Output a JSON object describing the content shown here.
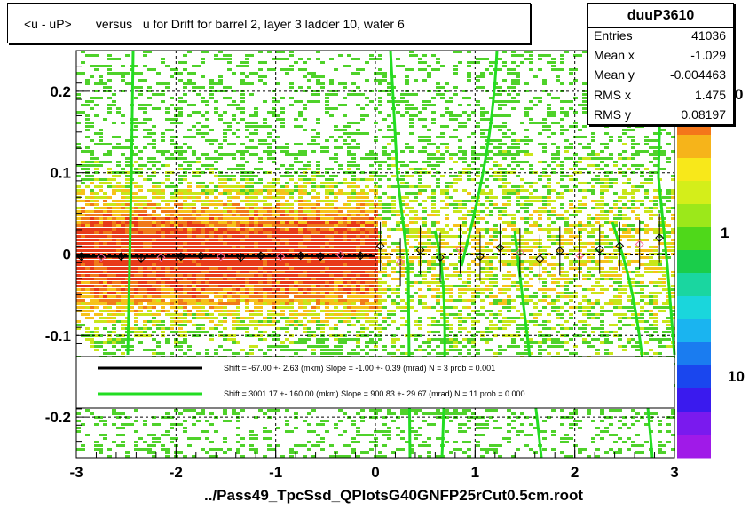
{
  "title": "<u - uP>       versus   u for Drift for barrel 2, layer 3 ladder 10, wafer 6",
  "footer": "../Pass49_TpcSsd_QPlotsG40GNFP25rCut0.5cm.root",
  "stats": {
    "name": "duuP3610",
    "rows": [
      {
        "key": "Entries",
        "value": "41036"
      },
      {
        "key": "Mean x",
        "value": "-1.029"
      },
      {
        "key": "Mean y",
        "value": "-0.004463"
      },
      {
        "key": "RMS x",
        "value": "1.475"
      },
      {
        "key": "RMS y",
        "value": "0.08197"
      }
    ]
  },
  "colors": {
    "black_fit": "#000000",
    "green_fit": "#22dd22",
    "grid": "#000000",
    "profile_marker": "#000000",
    "profile_marker_alt": "#ff6699"
  },
  "chart_data": {
    "type": "heatmap",
    "xlim": [
      -3,
      3
    ],
    "ylim": [
      -0.25,
      0.25
    ],
    "x_ticks": [
      -3,
      -2,
      -1,
      0,
      1,
      2,
      3
    ],
    "x_tick_labels": [
      "-3",
      "-2",
      "-1",
      "0",
      "1",
      "2",
      "3"
    ],
    "y_ticks": [
      -0.2,
      -0.1,
      0,
      0.1,
      0.2
    ],
    "y_tick_labels": [
      "-0.2",
      "-0.1",
      "0",
      "0.1",
      "0.2"
    ],
    "grid": true,
    "colorbar": {
      "scale": "log",
      "tick_labels": [
        "10",
        "1",
        "0"
      ]
    },
    "legend": {
      "placement": "lower-center",
      "entries": [
        {
          "color": "#000000",
          "text": "Shift =   -67.00 +- 2.63 (mkm) Slope =    -1.00 +- 0.39 (mrad)  N = 3 prob = 0.001"
        },
        {
          "color": "#22dd22",
          "text": "Shift =  3001.17 +- 160.00 (mkm) Slope =   900.83 +- 29.67 (mrad)  N = 11 prob = 0.000"
        }
      ]
    },
    "fits": [
      {
        "name": "black",
        "shift_mkm": -67.0,
        "slope_mrad": -1.0
      },
      {
        "name": "green",
        "shift_mkm": 3001.17,
        "slope_mrad": 900.83
      }
    ],
    "profile_points": {
      "x": [
        -2.95,
        -2.75,
        -2.55,
        -2.35,
        -2.15,
        -1.95,
        -1.75,
        -1.55,
        -1.35,
        -1.15,
        -0.95,
        -0.75,
        -0.55,
        -0.35,
        -0.15,
        0.05,
        0.25,
        0.45,
        0.65,
        0.85,
        1.05,
        1.25,
        1.45,
        1.65,
        1.85,
        2.05,
        2.25,
        2.45,
        2.65,
        2.85
      ],
      "y": [
        -0.003,
        -0.004,
        -0.003,
        -0.005,
        -0.004,
        -0.003,
        -0.002,
        -0.003,
        -0.004,
        -0.002,
        -0.003,
        -0.002,
        -0.003,
        -0.001,
        -0.002,
        0.01,
        -0.01,
        0.005,
        -0.004,
        0.006,
        -0.003,
        0.008,
        0.002,
        -0.006,
        0.004,
        -0.002,
        0.006,
        0.01,
        0.012,
        0.02
      ]
    }
  }
}
